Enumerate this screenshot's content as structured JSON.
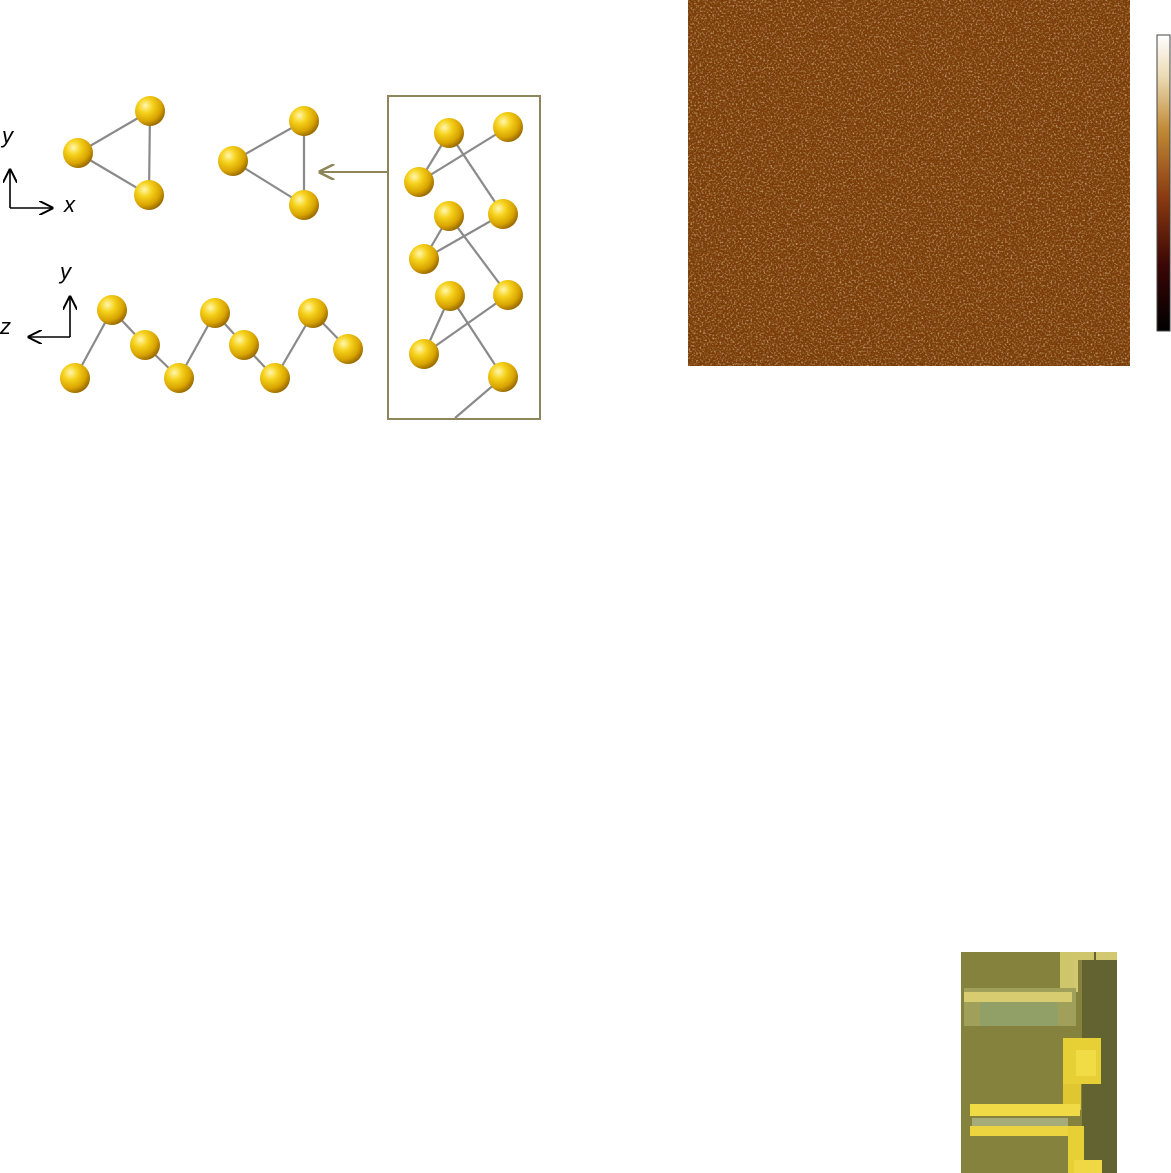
{
  "axes": {
    "top_left": {
      "vertical": "y",
      "horizontal": "x"
    },
    "bottom_left": {
      "vertical": "y",
      "horizontal": "z"
    }
  },
  "colors": {
    "atom_light": "#fff39a",
    "atom_mid": "#f2c500",
    "atom_dark": "#a77800",
    "bond": "#8a8a8a",
    "inset_border": "#8e865a",
    "afm_base": "#7a3e06",
    "colorbar": [
      "#000000",
      "#4a0c08",
      "#9a4a14",
      "#c58f3a",
      "#f0e2c0",
      "#ffffff"
    ],
    "device_bg": "#82803a",
    "device_electrode": "#e9d33a"
  },
  "icons": {
    "atom": "gold-sphere-icon",
    "inset_arrow": "left-arrow-icon"
  }
}
